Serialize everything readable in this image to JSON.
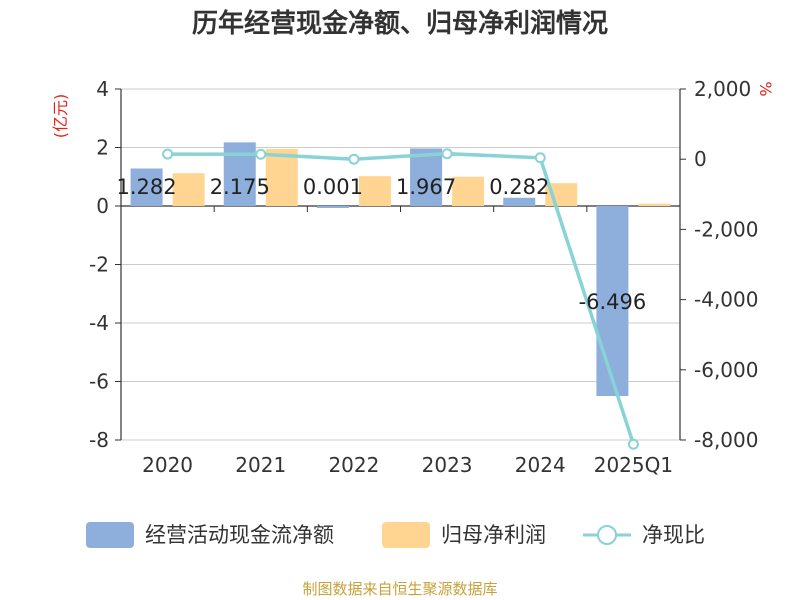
{
  "title": "历年经营现金净额、归母净利润情况",
  "source": "制图数据来自恒生聚源数据库",
  "colors": {
    "cashflow": "#8EAEDC",
    "profit": "#FFD591",
    "ratio": "#88D3D6",
    "unit": "#E2231A",
    "source": "#C9A13A",
    "axis": "#333333",
    "grid": "#CCCCCC"
  },
  "legend": {
    "position": "bottom",
    "items": [
      {
        "label": "经营活动现金流净额",
        "icon": "rect-swatch",
        "color": "#8EAEDC"
      },
      {
        "label": "归母净利润",
        "icon": "rect-swatch",
        "color": "#FFD591"
      },
      {
        "label": "净现比",
        "icon": "line-circle-marker",
        "color": "#88D3D6"
      }
    ]
  },
  "chart_data": {
    "type": "bar",
    "title": "历年经营现金净额、归母净利润情况",
    "categories": [
      "2020",
      "2021",
      "2022",
      "2023",
      "2024",
      "2025Q1"
    ],
    "y_left": {
      "unit_label": "(亿元)",
      "ylim": [
        -8,
        4
      ],
      "ticks": [
        4,
        2,
        0,
        -2,
        -4,
        -6,
        -8
      ],
      "tick_labels": [
        "4",
        "2",
        "0",
        "-2",
        "-4",
        "-6",
        "-8"
      ]
    },
    "y_right": {
      "unit_label": "%",
      "ylim": [
        -8000,
        2000
      ],
      "ticks": [
        2000,
        0,
        -2000,
        -4000,
        -6000,
        -8000
      ],
      "tick_labels": [
        "2,000",
        "0",
        "-2,000",
        "-4,000",
        "-6,000",
        "-8,000"
      ]
    },
    "grid": true,
    "series": [
      {
        "name": "经营活动现金流净额",
        "type": "bar",
        "axis": "left",
        "values": [
          1.282,
          2.175,
          0.001,
          1.967,
          0.282,
          -6.496
        ],
        "data_labels": [
          "1.282",
          "2.175",
          "0.001",
          "1.967",
          "0.282",
          "-6.496"
        ]
      },
      {
        "name": "归母净利润",
        "type": "bar",
        "axis": "left",
        "values": [
          1.12,
          1.95,
          1.02,
          1.0,
          0.78,
          0.08
        ]
      },
      {
        "name": "净现比",
        "type": "line",
        "axis": "right",
        "values": [
          146,
          142,
          0,
          157,
          40,
          -8120
        ]
      }
    ]
  }
}
